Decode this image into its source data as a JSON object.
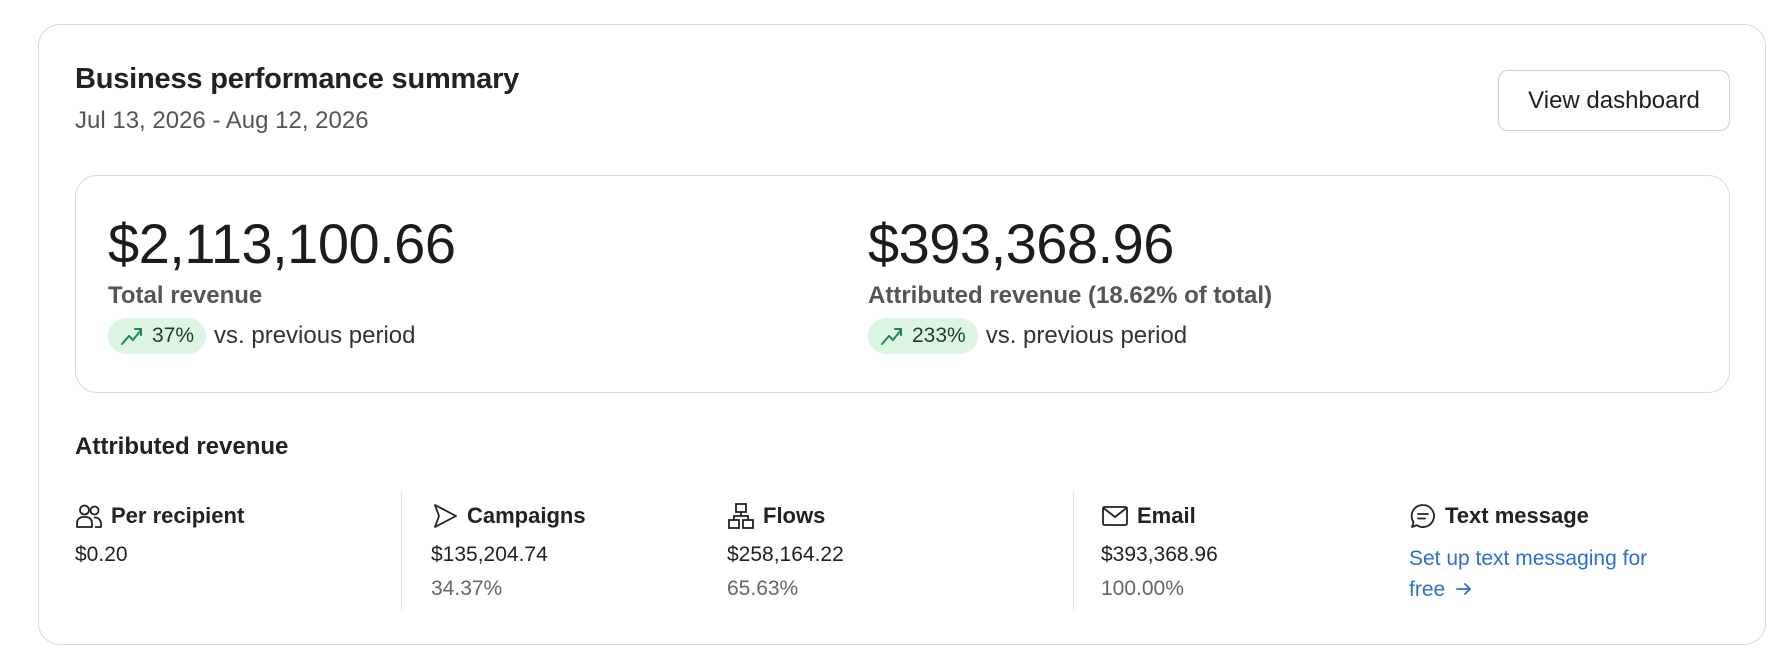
{
  "header": {
    "title": "Business performance summary",
    "date_range": "Jul 13, 2026 - Aug 12, 2026",
    "view_dashboard_label": "View dashboard"
  },
  "summary": {
    "total": {
      "amount": "$2,113,100.66",
      "label": "Total revenue",
      "change": "37%",
      "comparison": "vs. previous period"
    },
    "attributed": {
      "amount": "$393,368.96",
      "label": "Attributed revenue (18.62% of total)",
      "change": "233%",
      "comparison": "vs. previous period"
    }
  },
  "attributed_section": {
    "title": "Attributed revenue",
    "per_recipient": {
      "label": "Per recipient",
      "value": "$0.20"
    },
    "campaigns": {
      "label": "Campaigns",
      "value": "$135,204.74",
      "percent": "34.37%"
    },
    "flows": {
      "label": "Flows",
      "value": "$258,164.22",
      "percent": "65.63%"
    },
    "email": {
      "label": "Email",
      "value": "$393,368.96",
      "percent": "100.00%"
    },
    "text_message": {
      "label": "Text message",
      "link": "Set up text messaging for free"
    }
  },
  "colors": {
    "pill_bg": "#ddf6e3",
    "trend_icon": "#1f8a4c",
    "link": "#2b6fd6"
  },
  "icons": {
    "trend": "trending-up-icon",
    "per_recipient": "users-icon",
    "campaigns": "send-icon",
    "flows": "flow-icon",
    "email": "mail-icon",
    "text_message": "message-icon",
    "link_arrow": "arrow-right-icon"
  }
}
